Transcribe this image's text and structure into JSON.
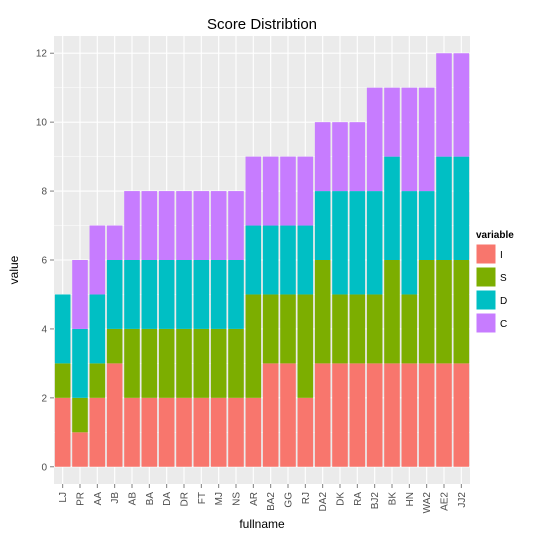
{
  "chart_data": {
    "type": "bar",
    "stacked": true,
    "title": "Score Distribtion",
    "xlabel": "fullname",
    "ylabel": "value",
    "ylim": [
      -0.5,
      12.5
    ],
    "yticks": [
      0,
      2,
      4,
      6,
      8,
      10,
      12
    ],
    "grid": true,
    "background_color": "#ebebeb",
    "grid_color": "#ffffff",
    "legend_position": "right",
    "legend_title": "variable",
    "categories": [
      "LJ",
      "PR",
      "AA",
      "JB",
      "AB",
      "BA",
      "DA",
      "DR",
      "FT",
      "MJ",
      "NS",
      "AR",
      "BA2",
      "GG",
      "RJ",
      "DA2",
      "DK",
      "RA",
      "BJ2",
      "BK",
      "HN",
      "WA2",
      "AE2",
      "JJ2"
    ],
    "series": [
      {
        "name": "I",
        "color": "#f8766d",
        "values": [
          2,
          1,
          2,
          3,
          2,
          2,
          2,
          2,
          2,
          2,
          2,
          2,
          3,
          3,
          2,
          3,
          3,
          3,
          3,
          3,
          3,
          3,
          3,
          3
        ]
      },
      {
        "name": "S",
        "color": "#7cae00",
        "values": [
          1,
          1,
          1,
          1,
          2,
          2,
          2,
          2,
          2,
          2,
          2,
          3,
          2,
          2,
          3,
          3,
          2,
          2,
          2,
          3,
          2,
          3,
          3,
          3
        ]
      },
      {
        "name": "D",
        "color": "#00bfc4",
        "values": [
          2,
          2,
          2,
          2,
          2,
          2,
          2,
          2,
          2,
          2,
          2,
          2,
          2,
          2,
          2,
          2,
          3,
          3,
          3,
          3,
          3,
          2,
          3,
          3
        ]
      },
      {
        "name": "C",
        "color": "#c77cff",
        "values": [
          0,
          2,
          2,
          1,
          2,
          2,
          2,
          2,
          2,
          2,
          2,
          2,
          2,
          2,
          2,
          2,
          2,
          2,
          3,
          2,
          3,
          3,
          3,
          3
        ]
      }
    ]
  }
}
